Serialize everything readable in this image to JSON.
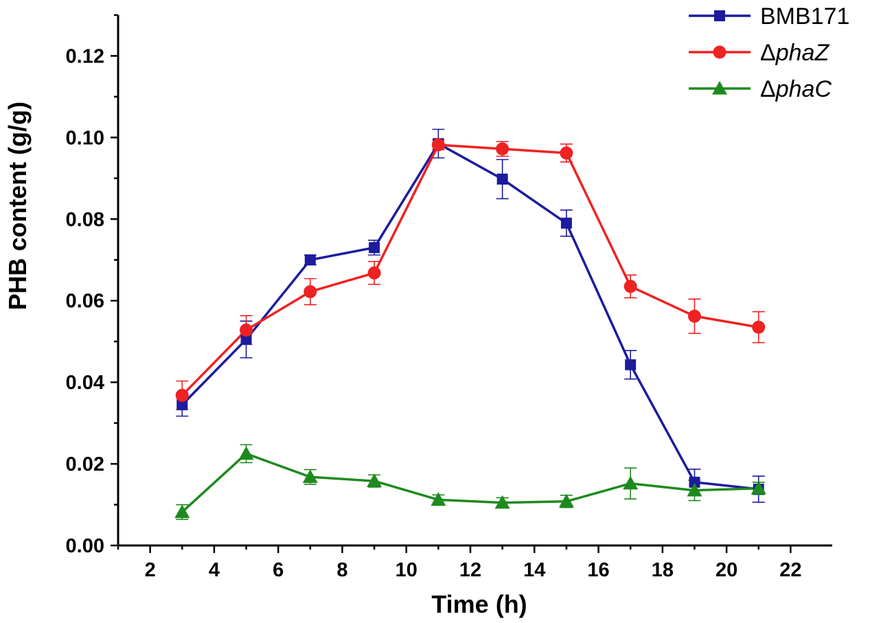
{
  "chart_data": {
    "type": "line",
    "title": "",
    "xlabel": "Time (h)",
    "ylabel": "PHB content (g/g)",
    "xlim": [
      1,
      23.3
    ],
    "ylim": [
      0,
      0.13
    ],
    "xticks": [
      2,
      4,
      6,
      8,
      10,
      12,
      14,
      16,
      18,
      20,
      22
    ],
    "xtick_labels": [
      "2",
      "4",
      "6",
      "8",
      "10",
      "12",
      "14",
      "16",
      "18",
      "20",
      "22"
    ],
    "yticks": [
      0,
      0.02,
      0.04,
      0.06,
      0.08,
      0.1,
      0.12
    ],
    "ytick_labels": [
      "0.00",
      "0.02",
      "0.04",
      "0.06",
      "0.08",
      "0.10",
      "0.12"
    ],
    "grid": false,
    "legend_position": "top-right",
    "x": [
      3,
      5,
      7,
      9,
      11,
      13,
      15,
      17,
      19,
      21
    ],
    "series": [
      {
        "name": "BMB171",
        "italic": false,
        "color": "#1c1c9c",
        "marker": "square",
        "values": [
          0.0345,
          0.0505,
          0.07,
          0.073,
          0.0985,
          0.0898,
          0.079,
          0.0443,
          0.0155,
          0.0138
        ],
        "errors": [
          0.0028,
          0.0045,
          0.0012,
          0.0018,
          0.0035,
          0.0048,
          0.0032,
          0.0035,
          0.0032,
          0.0032
        ]
      },
      {
        "name": "ΔphaZ",
        "prefix": "Δ",
        "italic_part": "phaZ",
        "color": "#ee2222",
        "marker": "circle",
        "values": [
          0.0368,
          0.0528,
          0.0622,
          0.0668,
          0.0982,
          0.0972,
          0.0962,
          0.0635,
          0.0562,
          0.0535
        ],
        "errors": [
          0.0035,
          0.0035,
          0.0032,
          0.0028,
          0.0012,
          0.0018,
          0.0022,
          0.0028,
          0.0042,
          0.0038
        ]
      },
      {
        "name": "ΔphaC",
        "prefix": "Δ",
        "italic_part": "phaC",
        "color": "#1e8a1e",
        "marker": "triangle",
        "values": [
          0.0082,
          0.0225,
          0.0168,
          0.0158,
          0.0112,
          0.0105,
          0.0108,
          0.0152,
          0.0135,
          0.014
        ],
        "errors": [
          0.0018,
          0.0022,
          0.0018,
          0.0015,
          0.0012,
          0.0012,
          0.0015,
          0.0038,
          0.0025,
          0.0015
        ]
      }
    ]
  }
}
